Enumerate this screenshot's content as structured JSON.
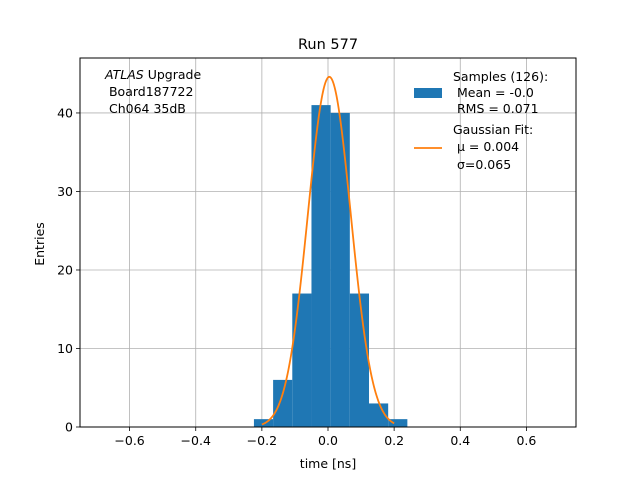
{
  "chart_data": {
    "type": "bar",
    "title": "Run 577",
    "xlabel": "time [ns]",
    "ylabel": "Entries",
    "xlim": [
      -0.75,
      0.75
    ],
    "ylim": [
      0,
      47
    ],
    "x_ticks": [
      -0.6,
      -0.4,
      -0.2,
      0.0,
      0.2,
      0.4,
      0.6
    ],
    "x_tick_labels": [
      "−0.6",
      "−0.4",
      "−0.2",
      "0.0",
      "0.2",
      "0.4",
      "0.6"
    ],
    "y_ticks": [
      0,
      10,
      20,
      30,
      40
    ],
    "y_tick_labels": [
      "0",
      "10",
      "20",
      "30",
      "40"
    ],
    "grid": true,
    "histogram": {
      "bin_edges": [
        -0.224,
        -0.166,
        -0.108,
        -0.05,
        0.008,
        0.066,
        0.124,
        0.182,
        0.24
      ],
      "counts": [
        1,
        6,
        17,
        41,
        40,
        17,
        3,
        1
      ],
      "color": "#1f77b4"
    },
    "gaussian_fit": {
      "amplitude": 44.6,
      "mu": 0.004,
      "sigma": 0.065,
      "x_range": [
        -0.2,
        0.2
      ],
      "color": "#ff7f0e"
    },
    "annotation": {
      "italic_part": "ATLAS",
      "line1_rest": " Upgrade",
      "line2": " Board187722",
      "line3": " Ch064 35dB"
    },
    "legend": {
      "position": "upper right",
      "entries": [
        {
          "kind": "patch",
          "color": "#1f77b4",
          "lines": [
            "Samples (126):",
            " Mean = -0.0",
            " RMS = 0.071"
          ]
        },
        {
          "kind": "line",
          "color": "#ff7f0e",
          "lines": [
            "Gaussian Fit:",
            " μ = 0.004",
            " σ=0.065"
          ]
        }
      ]
    }
  }
}
